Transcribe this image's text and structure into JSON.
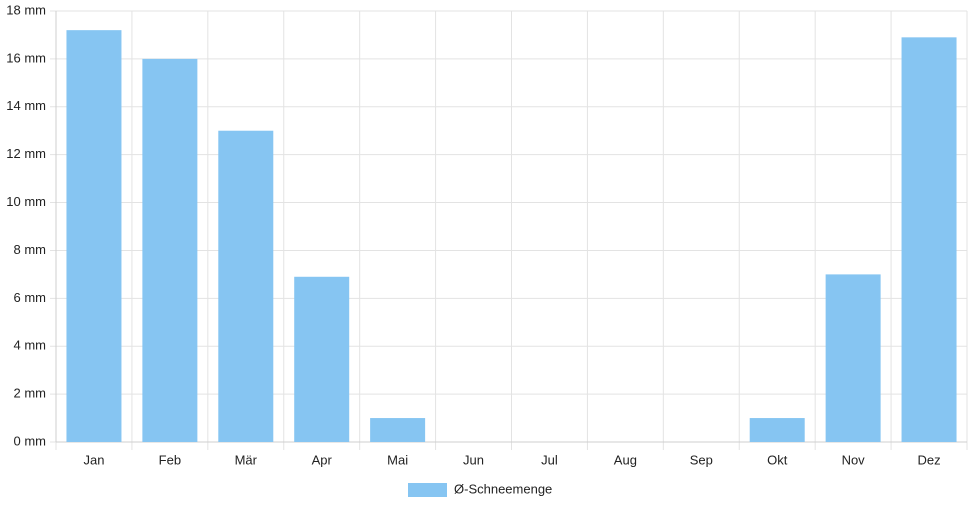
{
  "chart_data": {
    "type": "bar",
    "categories": [
      "Jan",
      "Feb",
      "Mär",
      "Apr",
      "Mai",
      "Jun",
      "Jul",
      "Aug",
      "Sep",
      "Okt",
      "Nov",
      "Dez"
    ],
    "series": [
      {
        "name": "Ø-Schneemenge",
        "color": "#86c5f2",
        "values": [
          17.2,
          16,
          13,
          6.9,
          1.0,
          0,
          0,
          0,
          0,
          1.0,
          7.0,
          16.9
        ]
      }
    ],
    "ylim": [
      0,
      18
    ],
    "yticks": [
      {
        "value": 0,
        "label": "0 mm"
      },
      {
        "value": 2,
        "label": "2 mm"
      },
      {
        "value": 4,
        "label": "4 mm"
      },
      {
        "value": 6,
        "label": "6 mm"
      },
      {
        "value": 8,
        "label": "8 mm"
      },
      {
        "value": 10,
        "label": "10 mm"
      },
      {
        "value": 12,
        "label": "12 mm"
      },
      {
        "value": 14,
        "label": "14 mm"
      },
      {
        "value": 16,
        "label": "16 mm"
      },
      {
        "value": 18,
        "label": "18 mm"
      }
    ],
    "grid": true,
    "legend": "bottom"
  }
}
